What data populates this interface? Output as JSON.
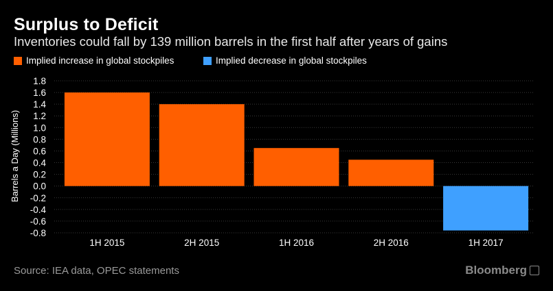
{
  "title": "Surplus to Deficit",
  "subtitle": "Inventories could fall by 139 million barrels in the first half after years of gains",
  "legend": [
    {
      "label": "Implied increase in global stockpiles",
      "color": "#ff5f00"
    },
    {
      "label": "Implied decrease in global stockpiles",
      "color": "#3fa0ff"
    }
  ],
  "source": "Source: IEA data, OPEC statements",
  "brand": "Bloomberg",
  "chart_data": {
    "type": "bar",
    "categories": [
      "1H 2015",
      "2H 2015",
      "1H 2016",
      "2H 2016",
      "1H 2017"
    ],
    "values": [
      1.6,
      1.4,
      0.65,
      0.45,
      -0.76
    ],
    "colors": [
      "#ff5f00",
      "#ff5f00",
      "#ff5f00",
      "#ff5f00",
      "#3fa0ff"
    ],
    "ylabel": "Barrels a Day (Millions)",
    "ylim": [
      -0.8,
      1.8
    ],
    "yticks": [
      1.8,
      1.6,
      1.4,
      1.2,
      1.0,
      0.8,
      0.6,
      0.4,
      0.2,
      0.0,
      -0.2,
      -0.4,
      -0.6,
      -0.8
    ],
    "ytick_labels": [
      "1.8",
      "1.6",
      "1.4",
      "1.2",
      "1.0",
      "0.8",
      "0.6",
      "0.4",
      "0.2",
      "0.0",
      "-0.2",
      "-0.4",
      "-0.6",
      "-0.8"
    ],
    "grid": true
  }
}
